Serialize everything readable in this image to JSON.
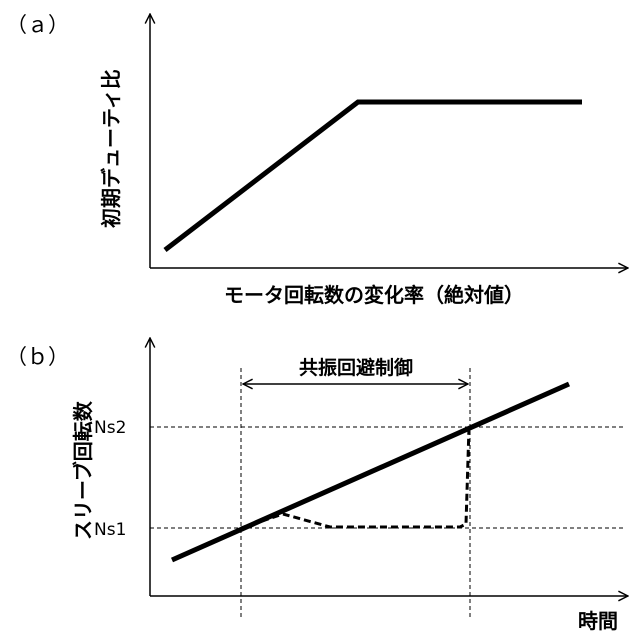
{
  "panel_a": {
    "label": "（ａ）",
    "y_axis_label": "初期デューティ比",
    "x_axis_label": "モータ回転数の変化率（絶対値）"
  },
  "panel_b": {
    "label": "（ｂ）",
    "y_axis_label": "スリーブ回転数",
    "x_axis_label": "時間",
    "ticks": {
      "ns1": "Ns1",
      "ns2": "Ns2"
    },
    "range_label": "共振回避制御"
  },
  "colors": {
    "ink": "#000000",
    "background": "#ffffff"
  }
}
